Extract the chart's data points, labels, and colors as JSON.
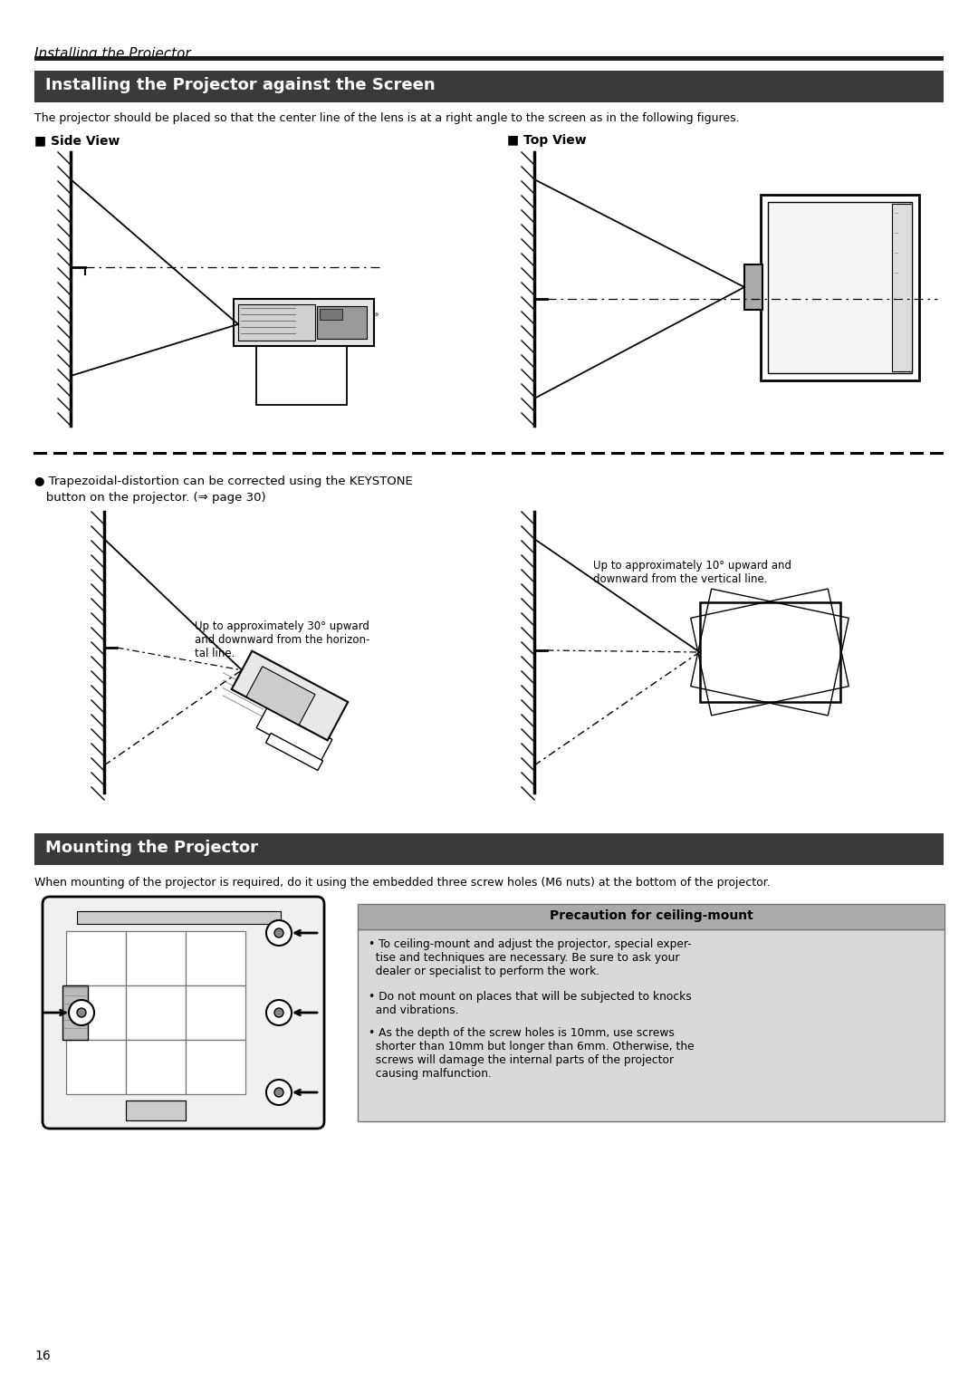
{
  "page_title": "Installing the Projector",
  "section1_title": "Installing the Projector against the Screen",
  "section1_title_bg": "#3a3a3a",
  "section1_title_color": "#ffffff",
  "section1_body": "The projector should be placed so that the center line of the lens is at a right angle to the screen as in the following figures.",
  "side_view_label": "■ Side View",
  "top_view_label": "■ Top View",
  "bullet_line1": "● Trapezoidal-distortion can be corrected using the KEYSTONE",
  "bullet_line2": "   button on the projector. (⇒ page 30)",
  "side_angled_label": "Up to approximately 30° upward\nand downward from the horizon-\ntal line.",
  "top_angled_label": "Up to approximately 10° upward and\ndownward from the vertical line.",
  "section2_title": "Mounting the Projector",
  "section2_title_bg": "#3a3a3a",
  "section2_title_color": "#ffffff",
  "section2_body": "When mounting of the projector is required, do it using the embedded three screw holes (M6 nuts) at the bottom of the projector.",
  "precaution_title": "Precaution for ceiling-mount",
  "precaution_title_bg": "#aaaaaa",
  "precaution_body_bg": "#d8d8d8",
  "precaution_bullet1": "• To ceiling-mount and adjust the projector, special exper-\n  tise and techniques are necessary. Be sure to ask your\n  dealer or specialist to perform the work.",
  "precaution_bullet2": "• Do not mount on places that will be subjected to knocks\n  and vibrations.",
  "precaution_bullet3": "• As the depth of the screw holes is 10mm, use screws\n  shorter than 10mm but longer than 6mm. Otherwise, the\n  screws will damage the internal parts of the projector\n  causing malfunction.",
  "page_number": "16",
  "bg_color": "#ffffff",
  "text_color": "#000000"
}
